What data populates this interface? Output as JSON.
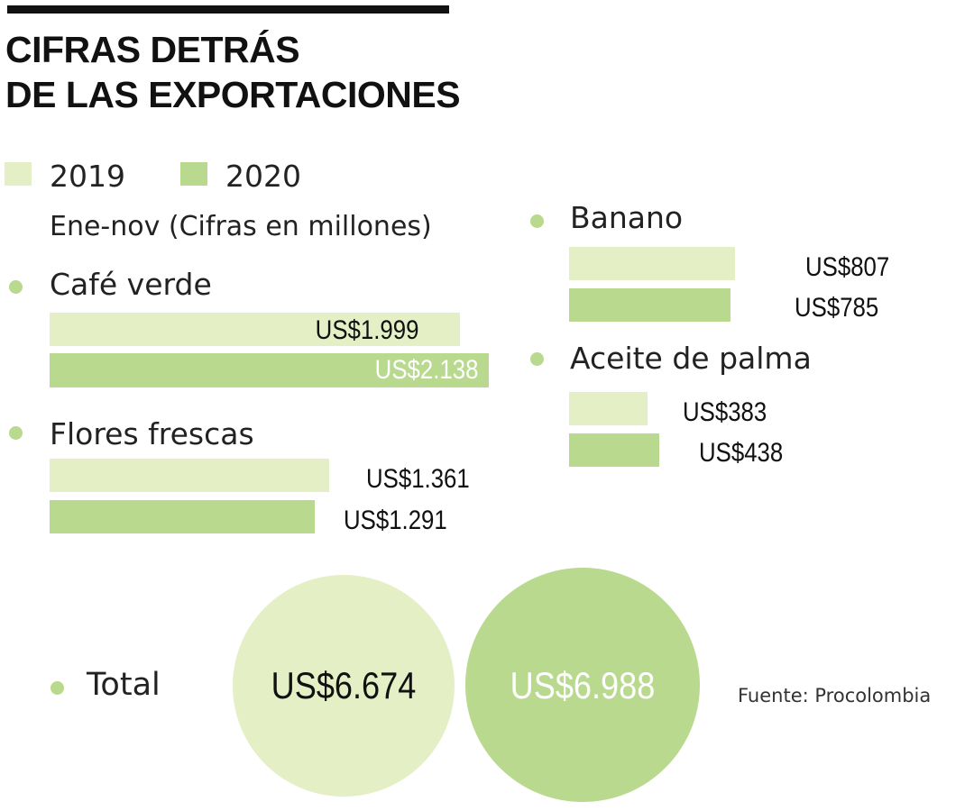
{
  "title": {
    "line1": "CIFRAS DETRÁS",
    "line2": "DE LAS EXPORTACIONES"
  },
  "legend": [
    {
      "label": "2019",
      "color": "#e5efc6"
    },
    {
      "label": "2020",
      "color": "#b8d98e"
    }
  ],
  "subtitle": "Ene-nov (Cifras en millones)",
  "colors": {
    "bar_2019": "#e5efc6",
    "bar_2020": "#b8d98e",
    "dot": "#b8d98e",
    "label_dark": "#111111",
    "label_light": "#ffffff"
  },
  "chart_data": {
    "type": "bar",
    "orientation": "horizontal",
    "series": [
      {
        "name": "2019",
        "values": [
          1999,
          1361,
          807,
          383
        ]
      },
      {
        "name": "2020",
        "values": [
          2138,
          1291,
          785,
          438
        ]
      }
    ],
    "categories": [
      "Café verde",
      "Flores frescas",
      "Banano",
      "Aceite de palma"
    ],
    "value_labels": [
      [
        "US$1.999",
        "US$2.138"
      ],
      [
        "US$1.361",
        "US$1.291"
      ],
      [
        "US$807",
        "US$785"
      ],
      [
        "US$383",
        "US$438"
      ]
    ],
    "unit": "US$ millones",
    "total": {
      "label": "Total",
      "values": [
        6674,
        6988
      ],
      "value_labels": [
        "US$6.674",
        "US$6.988"
      ]
    }
  },
  "source": "Fuente: Procolombia"
}
